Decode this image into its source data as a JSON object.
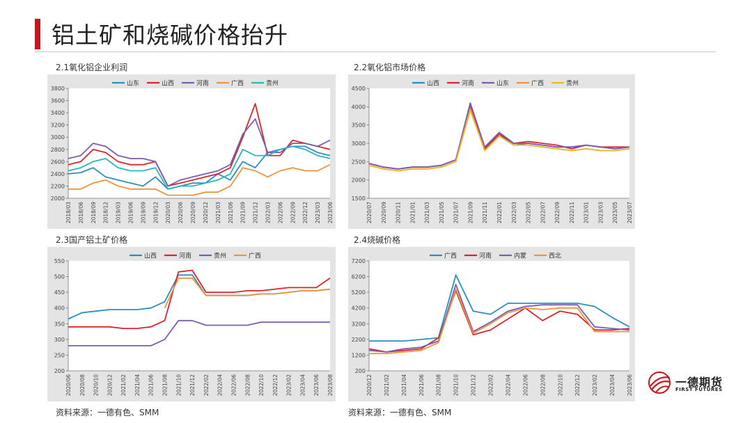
{
  "page": {
    "title": "铝土矿和烧碱价格抬升",
    "logo_cn": "一德期货",
    "logo_en": "FIRST FUTURES",
    "accent_color": "#c8161d",
    "logo_icon": "globe-logo-icon"
  },
  "panels": [
    {
      "title": "2.1氧化铝企业利润",
      "source": "资料来源：一德有色、SMM"
    },
    {
      "title": "2.2氧化铝市场价格",
      "source": "资料来源：一德有色、SMM"
    },
    {
      "title": "2.3国产铝土矿价格"
    },
    {
      "title": "2.4烧碱价格"
    }
  ],
  "chart_data": [
    {
      "type": "line",
      "ylim": [
        2000,
        3800
      ],
      "yticks": [
        2000,
        2200,
        2400,
        2600,
        2800,
        3000,
        3200,
        3400,
        3600,
        3800
      ],
      "xlabels": [
        "2018/03",
        "2018/06",
        "2018/09",
        "2018/12",
        "2019/03",
        "2019/06",
        "2019/09",
        "2019/12",
        "2020/03",
        "2020/06",
        "2020/09",
        "2020/12",
        "2021/03",
        "2021/06",
        "2021/09",
        "2021/12",
        "2022/03",
        "2022/06",
        "2022/09",
        "2022/12",
        "2023/03",
        "2023/06"
      ],
      "legend_position": "top",
      "series": [
        {
          "name": "山东",
          "color": "#2a8fc0",
          "values": [
            2400,
            2420,
            2500,
            2350,
            2300,
            2250,
            2200,
            2350,
            2150,
            2200,
            2250,
            2250,
            2400,
            2300,
            2600,
            2500,
            2750,
            2800,
            2850,
            2850,
            2750,
            2700
          ]
        },
        {
          "name": "山西",
          "color": "#d8262b",
          "values": [
            2550,
            2600,
            2800,
            2750,
            2600,
            2550,
            2550,
            2600,
            2200,
            2250,
            2300,
            2350,
            2400,
            2500,
            3000,
            3550,
            2700,
            2700,
            2950,
            2900,
            2850,
            2800
          ]
        },
        {
          "name": "河南",
          "color": "#7a5cb0",
          "values": [
            2650,
            2700,
            2900,
            2850,
            2700,
            2650,
            2650,
            2600,
            2200,
            2300,
            2350,
            2400,
            2450,
            2550,
            3050,
            3300,
            2750,
            2750,
            2900,
            2900,
            2850,
            2950
          ]
        },
        {
          "name": "广西",
          "color": "#f0923a",
          "values": [
            2150,
            2150,
            2250,
            2300,
            2200,
            2150,
            2150,
            2150,
            2050,
            2050,
            2050,
            2100,
            2100,
            2200,
            2500,
            2450,
            2350,
            2450,
            2500,
            2450,
            2450,
            2550
          ]
        },
        {
          "name": "贵州",
          "color": "#2ab5b8",
          "values": [
            2450,
            2500,
            2600,
            2650,
            2500,
            2450,
            2450,
            2500,
            2150,
            2200,
            2200,
            2250,
            2300,
            2400,
            2800,
            2700,
            2700,
            2800,
            2850,
            2800,
            2700,
            2650
          ]
        }
      ]
    },
    {
      "type": "line",
      "ylim": [
        1500,
        4500
      ],
      "yticks": [
        1500,
        2000,
        2500,
        3000,
        3500,
        4000,
        4500
      ],
      "xlabels": [
        "2020/07",
        "2020/09",
        "2020/11",
        "2021/01",
        "2021/03",
        "2021/05",
        "2021/07",
        "2021/09",
        "2021/11",
        "2022/01",
        "2022/03",
        "2022/05",
        "2022/07",
        "2022/09",
        "2022/11",
        "2023/01",
        "2023/03",
        "2023/05",
        "2023/07"
      ],
      "legend_position": "top",
      "series": [
        {
          "name": "山西",
          "color": "#2a8fc0",
          "values": [
            2450,
            2350,
            2300,
            2350,
            2350,
            2400,
            2550,
            4100,
            2850,
            3250,
            2950,
            3000,
            2950,
            2900,
            2900,
            2950,
            2900,
            2850,
            2900
          ]
        },
        {
          "name": "河南",
          "color": "#d8262b",
          "values": [
            2450,
            2350,
            2300,
            2350,
            2350,
            2400,
            2550,
            4000,
            2850,
            3250,
            3000,
            3050,
            3000,
            2950,
            2850,
            2950,
            2900,
            2900,
            2900
          ]
        },
        {
          "name": "山东",
          "color": "#7a5cb0",
          "values": [
            2450,
            2350,
            2300,
            2350,
            2350,
            2400,
            2550,
            4100,
            2900,
            3300,
            3000,
            3000,
            2950,
            2900,
            2900,
            2950,
            2900,
            2850,
            2900
          ]
        },
        {
          "name": "广西",
          "color": "#f0923a",
          "values": [
            2400,
            2300,
            2250,
            2300,
            2300,
            2350,
            2500,
            3950,
            2800,
            3200,
            2950,
            2950,
            2900,
            2850,
            2800,
            2850,
            2800,
            2800,
            2850
          ]
        },
        {
          "name": "贵州",
          "color": "#f2b52a",
          "values": [
            2400,
            2300,
            2250,
            2300,
            2300,
            2350,
            2500,
            3900,
            2800,
            3200,
            2950,
            2950,
            2900,
            2850,
            2800,
            2850,
            2800,
            2800,
            2850
          ]
        }
      ]
    },
    {
      "type": "line",
      "ylim": [
        200,
        550
      ],
      "yticks": [
        200,
        250,
        300,
        350,
        400,
        450,
        500,
        550
      ],
      "xlabels": [
        "2020/06",
        "2020/08",
        "2020/10",
        "2020/12",
        "2021/02",
        "2021/04",
        "2021/06",
        "2021/08",
        "2021/10",
        "2021/12",
        "2022/02",
        "2022/04",
        "2022/06",
        "2022/08",
        "2022/10",
        "2022/12",
        "2023/02",
        "2023/04",
        "2023/06",
        "2023/08"
      ],
      "legend_position": "top",
      "series": [
        {
          "name": "山西",
          "color": "#2a8fc0",
          "values": [
            365,
            385,
            390,
            395,
            395,
            395,
            400,
            420,
            505,
            505,
            440,
            440,
            440,
            440,
            445,
            445,
            450,
            455,
            455,
            460
          ]
        },
        {
          "name": "河南",
          "color": "#d8262b",
          "values": [
            340,
            340,
            340,
            340,
            335,
            335,
            340,
            360,
            515,
            520,
            450,
            450,
            450,
            455,
            455,
            460,
            465,
            465,
            465,
            495
          ]
        },
        {
          "name": "贵州",
          "color": "#7a5cb0",
          "values": [
            280,
            280,
            280,
            280,
            280,
            280,
            280,
            300,
            360,
            360,
            345,
            345,
            345,
            345,
            355,
            355,
            355,
            355,
            355,
            355
          ]
        },
        {
          "name": "广西",
          "color": "#f0923a",
          "values": [
            null,
            null,
            null,
            null,
            null,
            null,
            null,
            400,
            495,
            495,
            440,
            440,
            440,
            440,
            445,
            445,
            450,
            455,
            455,
            460
          ]
        }
      ]
    },
    {
      "type": "line",
      "ylim": [
        200,
        7200
      ],
      "yticks": [
        200,
        1200,
        2200,
        3200,
        4200,
        5200,
        6200,
        7200
      ],
      "xlabels": [
        "2020/12",
        "2021/02",
        "2021/04",
        "2021/06",
        "2021/08",
        "2021/10",
        "2021/12",
        "2022/02",
        "2022/04",
        "2022/06",
        "2022/08",
        "2022/10",
        "2022/12",
        "2023/02",
        "2023/04",
        "2023/06"
      ],
      "legend_position": "top",
      "series": [
        {
          "name": "广西",
          "color": "#2a8fc0",
          "values": [
            2100,
            2100,
            2100,
            2200,
            2300,
            6300,
            4000,
            3800,
            4500,
            4500,
            4500,
            4500,
            4500,
            4300,
            3600,
            3000
          ]
        },
        {
          "name": "河南",
          "color": "#d8262b",
          "values": [
            1600,
            1400,
            1500,
            1600,
            2300,
            5300,
            2500,
            2800,
            3500,
            4200,
            3400,
            4000,
            3800,
            2800,
            2800,
            2900
          ]
        },
        {
          "name": "内蒙",
          "color": "#7a5cb0",
          "values": [
            1500,
            1400,
            1600,
            1700,
            2100,
            5700,
            2700,
            3300,
            4000,
            4300,
            4400,
            4400,
            4400,
            3000,
            2900,
            2800
          ]
        },
        {
          "name": "西北",
          "color": "#f0923a",
          "values": [
            1300,
            1300,
            1400,
            1500,
            2000,
            5400,
            2600,
            3200,
            3900,
            4200,
            4100,
            4200,
            4200,
            2700,
            2700,
            2700
          ]
        }
      ]
    }
  ]
}
